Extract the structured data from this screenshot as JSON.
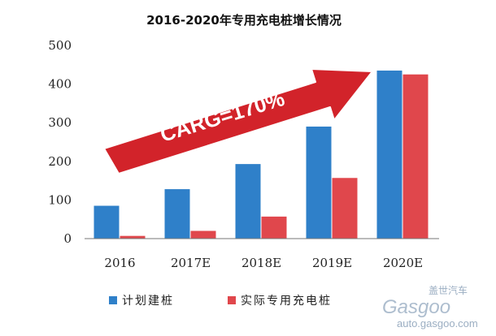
{
  "chart_data": {
    "type": "bar",
    "title": "2016-2020年专用充电桩增长情况",
    "categories": [
      "2016",
      "2017E",
      "2018E",
      "2019E",
      "2020E"
    ],
    "series": [
      {
        "name": "计划建桩",
        "color": "#2f80c9",
        "values": [
          85,
          128,
          193,
          290,
          435
        ]
      },
      {
        "name": "实际专用充电桩",
        "color": "#e0474c",
        "values": [
          7,
          20,
          57,
          157,
          425
        ]
      }
    ],
    "ylim": [
      0,
      500
    ],
    "yticks": [
      "0",
      "100",
      "200",
      "300",
      "400",
      "500"
    ],
    "grid": false,
    "legend_position": "bottom",
    "annotation": "CARG=170%",
    "annotation_color": "#d2232a"
  },
  "watermark": {
    "cn": "盖世汽车",
    "en": "Gasgoo",
    "url": "auto.gasgoo.com"
  }
}
